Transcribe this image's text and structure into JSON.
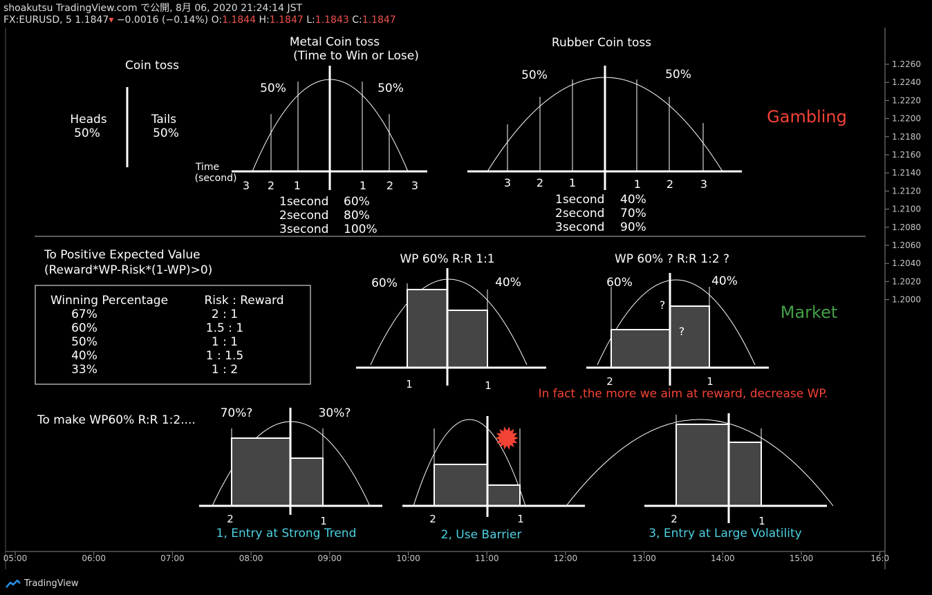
{
  "header": {
    "line1": "shoakutsu TradingView.com で公開, 8月 06, 2020 21:24:14 JST",
    "symbol": "FX:EURUSD, 5 1.1847",
    "change": "−0.0016 (−0.14%)",
    "o_label": "O:",
    "o_value": "1.1844",
    "h_label": "H:",
    "h_value": "1.1847",
    "l_label": "L:",
    "l_value": "1.1843",
    "c_label": "C:",
    "c_value": "1.1847"
  },
  "colors": {
    "background": "#000000",
    "text": "#ffffff",
    "gambling": "#f44336",
    "market": "#43a047",
    "strategy": "#4dd0e1",
    "warning": "#f44336",
    "bar_fill": "#454545",
    "axis_text": "#c8c8c8"
  },
  "chart_data": {
    "type": "annotation-chart",
    "y_axis": {
      "ticks": [
        "1.2260",
        "1.2240",
        "1.2220",
        "1.2200",
        "1.2180",
        "1.2160",
        "1.2140",
        "1.2120",
        "1.2100",
        "1.2080",
        "1.2060",
        "1.2040",
        "1.2020",
        "1.2000"
      ],
      "ylim": [
        1.1994,
        1.228
      ]
    },
    "x_axis": {
      "ticks": [
        "05:00",
        "06:00",
        "07:00",
        "08:00",
        "09:00",
        "10:00",
        "11:00",
        "12:00",
        "13:00",
        "14:00",
        "15:00",
        "16:0"
      ]
    },
    "coin_toss": {
      "title": "Coin toss",
      "heads": "Heads",
      "heads_pct": "50%",
      "tails": "Tails",
      "tails_pct": "50%"
    },
    "metal": {
      "title1": "Metal Coin toss",
      "title2": "(Time to Win or Lose)",
      "left_pct": "50%",
      "right_pct": "50%",
      "axis_label1": "Time",
      "axis_label2": "(second)",
      "ticks_left": [
        "3",
        "2",
        "1"
      ],
      "ticks_right": [
        "1",
        "2",
        "3"
      ],
      "rows": [
        [
          "1second",
          "60%"
        ],
        [
          "2second",
          "80%"
        ],
        [
          "3second",
          "100%"
        ]
      ]
    },
    "rubber": {
      "title": "Rubber Coin toss",
      "left_pct": "50%",
      "right_pct": "50%",
      "ticks_left": [
        "3",
        "2",
        "1"
      ],
      "ticks_right": [
        "1",
        "2",
        "3"
      ],
      "rows": [
        [
          "1second",
          "40%"
        ],
        [
          "2second",
          "70%"
        ],
        [
          "3second",
          "90%"
        ]
      ]
    },
    "gambling_label": "Gambling",
    "market_label": "Market",
    "expected_value": {
      "title1": "To Positive Expected Value",
      "title2": "(Reward*WP-Risk*(1-WP)>0)",
      "col1": "Winning Percentage",
      "col2": "Risk : Reward",
      "rows": [
        [
          "67%",
          "2 : 1"
        ],
        [
          "60%",
          "1.5 : 1"
        ],
        [
          "50%",
          "1 : 1"
        ],
        [
          "40%",
          "1 : 1.5"
        ],
        [
          "33%",
          "1 : 2"
        ]
      ]
    },
    "market1": {
      "title": "WP 60%    R:R 1:1",
      "left_pct": "60%",
      "right_pct": "40%",
      "tick_left": "1",
      "tick_right": "1"
    },
    "market2": {
      "title": "WP 60% ?   R:R 1:2 ?",
      "left_pct": "60%",
      "right_pct": "40%",
      "q": "?",
      "tick_left": "2",
      "tick_right": "1"
    },
    "warning": "In fact ,the more we aim at reward, decrease WP.",
    "make": {
      "title": "To make WP60% R:R 1:2....",
      "left_pct": "70%?",
      "right_pct": "30%?"
    },
    "strategies": [
      {
        "label": "1, Entry at Strong Trend",
        "tick_left": "2",
        "tick_right": "1"
      },
      {
        "label": "2, Use Barrier",
        "tick_left": "2",
        "tick_right": "1"
      },
      {
        "label": "3, Entry at Large Volatility",
        "tick_left": "2",
        "tick_right": "1"
      }
    ]
  },
  "footer": {
    "brand": "TradingView"
  }
}
